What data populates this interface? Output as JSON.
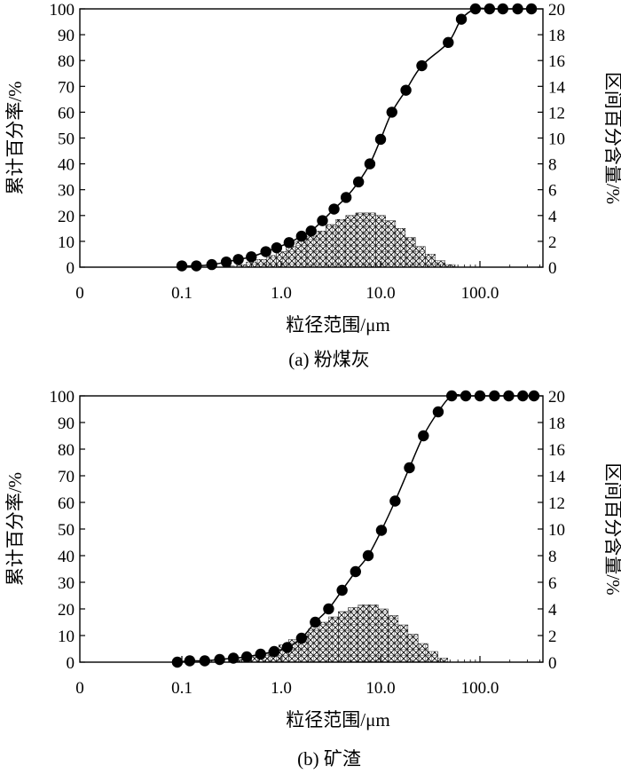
{
  "chart_data": [
    {
      "type": "line",
      "caption": "(a) 粉煤灰",
      "xlabel": "粒径范围/μm",
      "ylabel_left": "累计百分率/%",
      "ylabel_right": "区间百分含量/%",
      "x_scale": "log",
      "x_ticks": [
        "0",
        "0.1",
        "1.0",
        "10.0",
        "100.0"
      ],
      "y_left_range": [
        0,
        100
      ],
      "y_left_ticks": [
        "0",
        "10",
        "20",
        "30",
        "40",
        "50",
        "60",
        "70",
        "80",
        "90",
        "100"
      ],
      "y_right_range": [
        0,
        20
      ],
      "y_right_ticks": [
        "0",
        "2",
        "4",
        "6",
        "8",
        "10",
        "12",
        "14",
        "16",
        "18",
        "20"
      ],
      "grid": false,
      "series": [
        {
          "kind": "cumulative",
          "axis": "left",
          "x": [
            0.1,
            0.14,
            0.2,
            0.28,
            0.37,
            0.5,
            0.7,
            0.9,
            1.2,
            1.6,
            2.0,
            2.6,
            3.4,
            4.5,
            6.0,
            7.8,
            10.0,
            13.0,
            18.0,
            26.0,
            48.0,
            65.0,
            90.0,
            125.0,
            170.0,
            240.0,
            330.0
          ],
          "y": [
            0.5,
            0.5,
            1,
            2,
            3,
            4,
            6,
            7.5,
            9.5,
            12,
            14,
            18,
            22.5,
            27,
            33,
            40,
            49.5,
            60,
            68.5,
            78,
            87,
            96,
            100,
            100,
            100,
            100,
            100
          ]
        },
        {
          "kind": "interval",
          "axis": "right",
          "x": [
            0.3,
            0.4,
            0.5,
            0.63,
            0.8,
            1.0,
            1.26,
            1.58,
            2.0,
            2.51,
            3.16,
            3.98,
            5.01,
            6.31,
            7.94,
            10.0,
            12.6,
            15.8,
            20.0,
            25.1,
            31.6,
            39.8,
            50.1
          ],
          "y": [
            0.1,
            0.2,
            0.4,
            0.6,
            0.9,
            1.2,
            1.6,
            2.0,
            2.4,
            2.8,
            3.3,
            3.7,
            4.0,
            4.2,
            4.2,
            4.0,
            3.6,
            3.0,
            2.3,
            1.6,
            1.0,
            0.5,
            0.2
          ]
        }
      ]
    },
    {
      "type": "line",
      "caption": "(b) 矿渣",
      "xlabel": "粒径范围/μm",
      "ylabel_left": "累计百分率/%",
      "ylabel_right": "区间百分含量/%",
      "x_scale": "log",
      "x_ticks": [
        "0",
        "0.1",
        "1.0",
        "10.0",
        "100.0"
      ],
      "y_left_range": [
        0,
        100
      ],
      "y_left_ticks": [
        "0",
        "10",
        "20",
        "30",
        "40",
        "50",
        "60",
        "70",
        "80",
        "90",
        "100"
      ],
      "y_right_range": [
        0,
        20
      ],
      "y_right_ticks": [
        "0",
        "2",
        "4",
        "6",
        "8",
        "10",
        "12",
        "14",
        "16",
        "18",
        "20"
      ],
      "grid": false,
      "series": [
        {
          "kind": "cumulative",
          "axis": "left",
          "x": [
            0.09,
            0.12,
            0.17,
            0.24,
            0.33,
            0.45,
            0.62,
            0.85,
            1.15,
            1.6,
            2.2,
            3.0,
            4.1,
            5.6,
            7.5,
            10.2,
            14.0,
            19.5,
            27.0,
            38.0,
            52.0,
            72.0,
            100.0,
            140.0,
            195.0,
            270.0,
            350.0
          ],
          "y": [
            0,
            0.5,
            0.5,
            1,
            1.5,
            2,
            3,
            4,
            5.5,
            9,
            15,
            20,
            27,
            34,
            40,
            49.5,
            60.5,
            73,
            85,
            94,
            100,
            100,
            100,
            100,
            100,
            100,
            100
          ]
        },
        {
          "kind": "interval",
          "axis": "right",
          "x": [
            0.33,
            0.42,
            0.53,
            0.67,
            0.84,
            1.06,
            1.33,
            1.68,
            2.11,
            2.66,
            3.35,
            4.22,
            5.31,
            6.69,
            8.43,
            10.6,
            13.4,
            16.8,
            21.2,
            26.7,
            33.6,
            42.3
          ],
          "y": [
            0.1,
            0.2,
            0.4,
            0.6,
            0.9,
            1.3,
            1.7,
            2.1,
            2.5,
            3.0,
            3.4,
            3.8,
            4.1,
            4.3,
            4.3,
            4.0,
            3.5,
            2.8,
            2.1,
            1.4,
            0.8,
            0.3
          ]
        }
      ]
    }
  ]
}
